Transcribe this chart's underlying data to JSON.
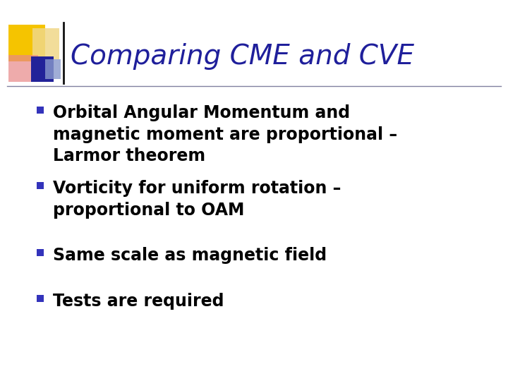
{
  "title": "Comparing CME and CVE",
  "title_color": "#1F1F9B",
  "title_fontsize": 28,
  "background_color": "#FFFFFF",
  "line_color": "#8080A0",
  "bullet_color": "#3333BB",
  "text_color": "#000000",
  "bullet_items": [
    "Orbital Angular Momentum and\nmagnetic moment are proportional –\nLarmor theorem",
    "Vorticity for uniform rotation –\nproportional to OAM",
    "Same scale as magnetic field",
    "Tests are required"
  ],
  "bullet_fontsize": 17,
  "logo_yellow": "#F5C400",
  "logo_light_yellow": "#F0D888",
  "logo_red_light": "#E88888",
  "logo_blue_dark": "#222299",
  "logo_blue_light": "#8899CC",
  "logo_bar_color": "#111111"
}
